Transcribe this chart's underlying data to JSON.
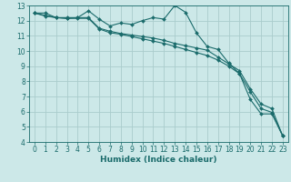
{
  "title": "",
  "xlabel": "Humidex (Indice chaleur)",
  "background_color": "#cce8e8",
  "grid_color": "#aacccc",
  "line_color": "#1a6b6b",
  "xlim": [
    -0.5,
    23.5
  ],
  "ylim": [
    4,
    13
  ],
  "x_ticks": [
    0,
    1,
    2,
    3,
    4,
    5,
    6,
    7,
    8,
    9,
    10,
    11,
    12,
    13,
    14,
    15,
    16,
    17,
    18,
    19,
    20,
    21,
    22,
    23
  ],
  "y_ticks": [
    4,
    5,
    6,
    7,
    8,
    9,
    10,
    11,
    12,
    13
  ],
  "series": [
    {
      "x": [
        0,
        1,
        2,
        3,
        4,
        5,
        6,
        7,
        8,
        9,
        10,
        11,
        12,
        13,
        14,
        15,
        16,
        17,
        18,
        19,
        20,
        21,
        22,
        23
      ],
      "y": [
        12.5,
        12.5,
        12.2,
        12.2,
        12.2,
        12.65,
        12.1,
        11.65,
        11.85,
        11.75,
        12.0,
        12.2,
        12.1,
        13.0,
        12.55,
        11.2,
        10.3,
        10.1,
        9.2,
        8.5,
        6.8,
        5.85,
        5.85,
        4.4
      ]
    },
    {
      "x": [
        0,
        1,
        2,
        3,
        4,
        5,
        6,
        7,
        8,
        9,
        10,
        11,
        12,
        13,
        14,
        15,
        16,
        17,
        18,
        19,
        20,
        21,
        22,
        23
      ],
      "y": [
        12.5,
        12.35,
        12.2,
        12.15,
        12.2,
        12.2,
        11.5,
        11.3,
        11.15,
        11.05,
        10.95,
        10.85,
        10.7,
        10.5,
        10.35,
        10.2,
        10.05,
        9.6,
        9.15,
        8.7,
        7.5,
        6.5,
        6.2,
        4.4
      ]
    },
    {
      "x": [
        0,
        1,
        2,
        3,
        4,
        5,
        6,
        7,
        8,
        9,
        10,
        11,
        12,
        13,
        14,
        15,
        16,
        17,
        18,
        19,
        20,
        21,
        22,
        23
      ],
      "y": [
        12.5,
        12.3,
        12.2,
        12.15,
        12.15,
        12.15,
        11.45,
        11.2,
        11.1,
        10.95,
        10.8,
        10.65,
        10.5,
        10.3,
        10.1,
        9.9,
        9.7,
        9.4,
        9.0,
        8.5,
        7.3,
        6.2,
        5.95,
        4.4
      ]
    }
  ],
  "tick_fontsize": 5.5,
  "xlabel_fontsize": 6.5,
  "marker": "D",
  "markersize": 2.0,
  "linewidth": 0.8
}
